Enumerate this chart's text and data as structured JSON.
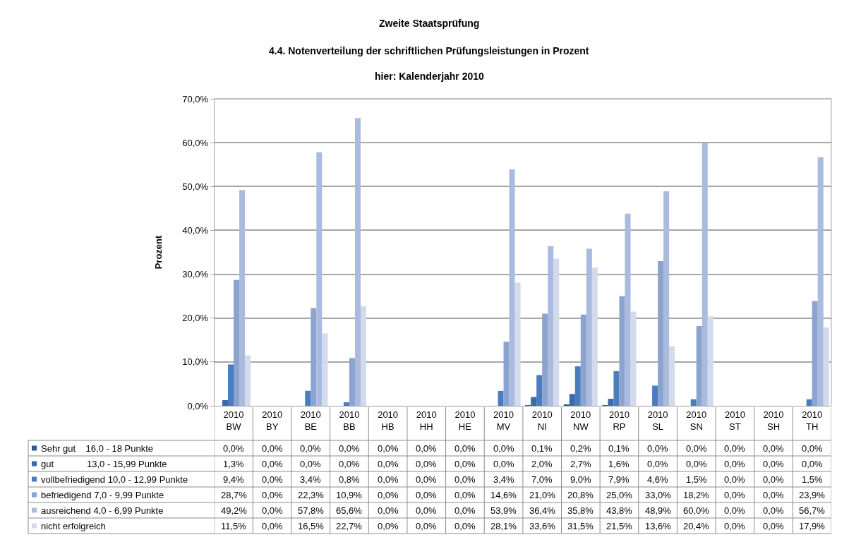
{
  "chart_data": {
    "type": "bar",
    "title": "Zweite Staatsprüfung",
    "subtitle": "4.4. Notenverteilung der schriftlichen Prüfungsleistungen in Prozent\nhier: Kalenderjahr 2010",
    "ylabel": "Prozent",
    "categories": [
      "2010\nBW",
      "2010\nBY",
      "2010\nBE",
      "2010\nBB",
      "2010\nHB",
      "2010\nHH",
      "2010\nHE",
      "2010\nMV",
      "2010\nNI",
      "2010\nNW",
      "2010\nRP",
      "2010\nSL",
      "2010\nSN",
      "2010\nST",
      "2010\nSH",
      "2010\nTH"
    ],
    "series": [
      {
        "name": "Sehr gut    16,0 - 18 Punkte",
        "color": "#2e5a8e",
        "values": [
          0.0,
          0.0,
          0.0,
          0.0,
          0.0,
          0.0,
          0.0,
          0.0,
          0.1,
          0.2,
          0.1,
          0.0,
          0.0,
          0.0,
          0.0,
          0.0
        ],
        "value_labels": [
          "0,0%",
          "0,0%",
          "0,0%",
          "0,0%",
          "0,0%",
          "0,0%",
          "0,0%",
          "0,0%",
          "0,1%",
          "0,2%",
          "0,1%",
          "0,0%",
          "0,0%",
          "0,0%",
          "0,0%",
          "0,0%"
        ]
      },
      {
        "name": "gut             13,0 - 15,99 Punkte",
        "color": "#3b6aa8",
        "values": [
          1.3,
          0.0,
          0.0,
          0.0,
          0.0,
          0.0,
          0.0,
          0.0,
          2.0,
          2.7,
          1.6,
          0.0,
          0.0,
          0.0,
          0.0,
          0.0
        ],
        "value_labels": [
          "1,3%",
          "0,0%",
          "0,0%",
          "0,0%",
          "0,0%",
          "0,0%",
          "0,0%",
          "0,0%",
          "2,0%",
          "2,7%",
          "1,6%",
          "0,0%",
          "0,0%",
          "0,0%",
          "0,0%",
          "0,0%"
        ]
      },
      {
        "name": "vollbefriedigend 10,0 - 12,99 Punkte",
        "color": "#4a7cc0",
        "values": [
          9.4,
          0.0,
          3.4,
          0.8,
          0.0,
          0.0,
          0.0,
          3.4,
          7.0,
          9.0,
          7.9,
          4.6,
          1.5,
          0.0,
          0.0,
          1.5
        ],
        "value_labels": [
          "9,4%",
          "0,0%",
          "3,4%",
          "0,8%",
          "0,0%",
          "0,0%",
          "0,0%",
          "3,4%",
          "7,0%",
          "9,0%",
          "7,9%",
          "4,6%",
          "1,5%",
          "0,0%",
          "0,0%",
          "1,5%"
        ]
      },
      {
        "name": "befriedigend 7,0 - 9,99 Punkte",
        "color": "#8ba3cf",
        "values": [
          28.7,
          0.0,
          22.3,
          10.9,
          0.0,
          0.0,
          0.0,
          14.6,
          21.0,
          20.8,
          25.0,
          33.0,
          18.2,
          0.0,
          0.0,
          23.9
        ],
        "value_labels": [
          "28,7%",
          "0,0%",
          "22,3%",
          "10,9%",
          "0,0%",
          "0,0%",
          "0,0%",
          "14,6%",
          "21,0%",
          "20,8%",
          "25,0%",
          "33,0%",
          "18,2%",
          "0,0%",
          "0,0%",
          "23,9%"
        ]
      },
      {
        "name": "ausreichend 4,0 - 6,99 Punkte",
        "color": "#aabbdf",
        "values": [
          49.2,
          0.0,
          57.8,
          65.6,
          0.0,
          0.0,
          0.0,
          53.9,
          36.4,
          35.8,
          43.8,
          48.9,
          60.0,
          0.0,
          0.0,
          56.7
        ],
        "value_labels": [
          "49,2%",
          "0,0%",
          "57,8%",
          "65,6%",
          "0,0%",
          "0,0%",
          "0,0%",
          "53,9%",
          "36,4%",
          "35,8%",
          "43,8%",
          "48,9%",
          "60,0%",
          "0,0%",
          "0,0%",
          "56,7%"
        ]
      },
      {
        "name": "nicht erfolgreich",
        "color": "#d2daeb",
        "values": [
          11.5,
          0.0,
          16.5,
          22.7,
          0.0,
          0.0,
          0.0,
          28.1,
          33.6,
          31.5,
          21.5,
          13.6,
          20.4,
          0.0,
          0.0,
          17.9
        ],
        "value_labels": [
          "11,5%",
          "0,0%",
          "16,5%",
          "22,7%",
          "0,0%",
          "0,0%",
          "0,0%",
          "28,1%",
          "33,6%",
          "31,5%",
          "21,5%",
          "13,6%",
          "20,4%",
          "0,0%",
          "0,0%",
          "17,9%"
        ]
      }
    ],
    "ylim": [
      0,
      70
    ],
    "yticks": [
      {
        "value": 0,
        "label": "0,0%"
      },
      {
        "value": 10,
        "label": "10,0%"
      },
      {
        "value": 20,
        "label": "20,0%"
      },
      {
        "value": 30,
        "label": "30,0%"
      },
      {
        "value": 40,
        "label": "40,0%"
      },
      {
        "value": 50,
        "label": "50,0%"
      },
      {
        "value": 60,
        "label": "60,0%"
      },
      {
        "value": 70,
        "label": "70,0%"
      }
    ],
    "grid": "y",
    "legend": "bottom left"
  }
}
